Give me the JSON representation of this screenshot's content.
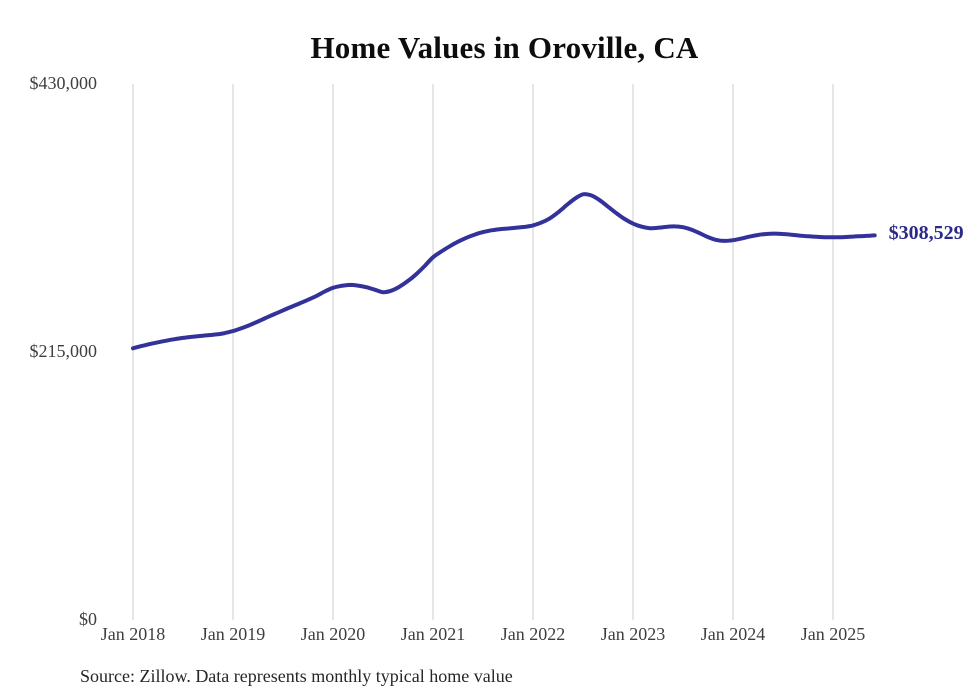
{
  "title": "Home Values in Oroville, CA",
  "source_note": "Source: Zillow. Data represents monthly typical home value",
  "end_label": "$308,529",
  "colors": {
    "background": "#ffffff",
    "title": "#0d0d0d",
    "axis_text": "#3f3f3f",
    "source_text": "#262626",
    "gridline": "#cccccc",
    "line": "#32329a",
    "end_label": "#2a2a8a"
  },
  "chart_data": {
    "type": "line",
    "title": "Home Values in Oroville, CA",
    "xlabel": "",
    "ylabel": "",
    "ylim": [
      0,
      430000
    ],
    "grid": "vertical-only",
    "legend": "none",
    "y_ticks": [
      {
        "label": "$430,000",
        "value": 430000
      },
      {
        "label": "$215,000",
        "value": 215000
      },
      {
        "label": "$0",
        "value": 0
      }
    ],
    "x_tick_labels": [
      "Jan 2018",
      "Jan 2019",
      "Jan 2020",
      "Jan 2021",
      "Jan 2022",
      "Jan 2023",
      "Jan 2024",
      "Jan 2025"
    ],
    "x_ticks_every_n_months": 12,
    "series": [
      {
        "name": "Monthly typical home value",
        "last_value": 308529,
        "last_value_label": "$308,529",
        "months": [
          "2018-01",
          "2018-02",
          "2018-03",
          "2018-04",
          "2018-05",
          "2018-06",
          "2018-07",
          "2018-08",
          "2018-09",
          "2018-10",
          "2018-11",
          "2018-12",
          "2019-01",
          "2019-02",
          "2019-03",
          "2019-04",
          "2019-05",
          "2019-06",
          "2019-07",
          "2019-08",
          "2019-09",
          "2019-10",
          "2019-11",
          "2019-12",
          "2020-01",
          "2020-02",
          "2020-03",
          "2020-04",
          "2020-05",
          "2020-06",
          "2020-07",
          "2020-08",
          "2020-09",
          "2020-10",
          "2020-11",
          "2020-12",
          "2021-01",
          "2021-02",
          "2021-03",
          "2021-04",
          "2021-05",
          "2021-06",
          "2021-07",
          "2021-08",
          "2021-09",
          "2021-10",
          "2021-11",
          "2021-12",
          "2022-01",
          "2022-02",
          "2022-03",
          "2022-04",
          "2022-05",
          "2022-06",
          "2022-07",
          "2022-08",
          "2022-09",
          "2022-10",
          "2022-11",
          "2022-12",
          "2023-01",
          "2023-02",
          "2023-03",
          "2023-04",
          "2023-05",
          "2023-06",
          "2023-07",
          "2023-08",
          "2023-09",
          "2023-10",
          "2023-11",
          "2023-12",
          "2024-01",
          "2024-02",
          "2024-03",
          "2024-04",
          "2024-05",
          "2024-06",
          "2024-07",
          "2024-08",
          "2024-09",
          "2024-10",
          "2024-11",
          "2024-12",
          "2025-01",
          "2025-02",
          "2025-03",
          "2025-04",
          "2025-05",
          "2025-06"
        ],
        "values": [
          218000,
          219700,
          221300,
          222800,
          224100,
          225300,
          226300,
          227100,
          227800,
          228400,
          229100,
          230200,
          231800,
          234000,
          236600,
          239500,
          242500,
          245500,
          248400,
          251200,
          254000,
          256900,
          259900,
          263500,
          266500,
          268000,
          268800,
          268300,
          267000,
          265000,
          263000,
          264200,
          267500,
          272000,
          277500,
          284000,
          291000,
          295600,
          299800,
          303500,
          306600,
          309200,
          311200,
          312600,
          313500,
          314100,
          314700,
          315400,
          316600,
          318800,
          322200,
          327000,
          332600,
          337900,
          341500,
          340600,
          336800,
          331600,
          326400,
          321700,
          318000,
          315600,
          314300,
          314600,
          315400,
          315800,
          315100,
          313200,
          310300,
          307200,
          304900,
          304100,
          304700,
          306000,
          307600,
          308900,
          309700,
          310000,
          309700,
          309100,
          308400,
          307800,
          307400,
          307100,
          307000,
          307100,
          307400,
          307800,
          308100,
          308529
        ]
      }
    ]
  }
}
